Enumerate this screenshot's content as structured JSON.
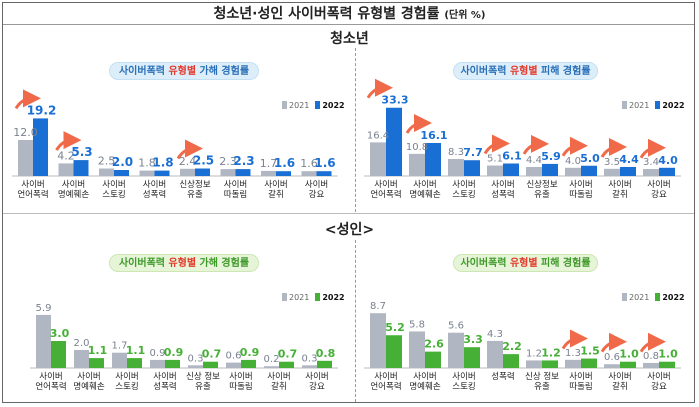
{
  "header": {
    "title": "청소년·성인 사이버폭력 유형별 경험률",
    "unit": "(단위 %)"
  },
  "sections": {
    "youth": "청소년",
    "adult": "<성인>"
  },
  "colors": {
    "y2021": "#b0b7c3",
    "youth2022": "#1a6fd4",
    "adult2022": "#45b035",
    "arrow": "#f06a4a",
    "highlight": "#e43a2c"
  },
  "chart_data": [
    {
      "id": "youth-perp",
      "type": "bar",
      "theme": "blue",
      "pill": {
        "pre": "사이버폭력 ",
        "hl": "유형별",
        "post": " 가해 경험률"
      },
      "legend": [
        "2021",
        "2022"
      ],
      "categories": [
        [
          "사이버",
          "언어폭력"
        ],
        [
          "사이버",
          "명예훼손"
        ],
        [
          "사이버",
          "스토킹"
        ],
        [
          "사이버",
          "성폭력"
        ],
        [
          "신상정보",
          "유출"
        ],
        [
          "사이버",
          "따돌림"
        ],
        [
          "사이버",
          "갈취"
        ],
        [
          "사이버",
          "강요"
        ]
      ],
      "series": [
        {
          "name": "2021",
          "values": [
            12.0,
            4.2,
            2.5,
            1.8,
            2.4,
            2.3,
            1.7,
            1.6
          ]
        },
        {
          "name": "2022",
          "values": [
            19.2,
            5.3,
            2.0,
            1.8,
            2.5,
            2.3,
            1.6,
            1.6
          ]
        }
      ],
      "labels": {
        "2021": [
          "12.0",
          "4.2",
          "2.5",
          "1.8",
          "2.4",
          "2.3",
          "1.7",
          "1.6"
        ],
        "2022": [
          "19.2",
          "5.3",
          "2.0",
          "1.8",
          "2.5",
          "2.3",
          "1.6",
          "1.6"
        ]
      },
      "increase_arrows": [
        0,
        1,
        4
      ]
    },
    {
      "id": "youth-victim",
      "type": "bar",
      "theme": "blue",
      "pill": {
        "pre": "사이버폭력 ",
        "hl": "유형별",
        "post": " 피해 경험률"
      },
      "legend": [
        "2021",
        "2022"
      ],
      "categories": [
        [
          "사이버",
          "언어폭력"
        ],
        [
          "사이버",
          "명예훼손"
        ],
        [
          "사이버",
          "스토킹"
        ],
        [
          "사이버",
          "성폭력"
        ],
        [
          "신상정보",
          "유출"
        ],
        [
          "사이버",
          "따돌림"
        ],
        [
          "사이버",
          "갈취"
        ],
        [
          "사이버",
          "강요"
        ]
      ],
      "series": [
        {
          "name": "2021",
          "values": [
            16.4,
            10.8,
            8.3,
            5.1,
            4.4,
            4.0,
            3.5,
            3.4
          ]
        },
        {
          "name": "2022",
          "values": [
            33.3,
            16.1,
            7.7,
            6.1,
            5.9,
            5.0,
            4.4,
            4.0
          ]
        }
      ],
      "labels": {
        "2021": [
          "16.4",
          "10.8",
          "8.3",
          "5.1",
          "4.4",
          "4.0",
          "3.5",
          "3.4"
        ],
        "2022": [
          "33.3",
          "16.1",
          "7.7",
          "6.1",
          "5.9",
          "5.0",
          "4.4",
          "4.0"
        ]
      },
      "increase_arrows": [
        0,
        1,
        3,
        4,
        5,
        6,
        7
      ]
    },
    {
      "id": "adult-perp",
      "type": "bar",
      "theme": "green",
      "pill": {
        "pre": "사이버폭력 ",
        "hl": "유형별",
        "post": " 가해 경험률"
      },
      "legend": [
        "2021",
        "2022"
      ],
      "categories": [
        [
          "사이버",
          "언어폭력"
        ],
        [
          "사이버",
          "명예훼손"
        ],
        [
          "사이버",
          "스토킹"
        ],
        [
          "사이버",
          "성폭력"
        ],
        [
          "신상 정보",
          "유출"
        ],
        [
          "사이버",
          "따돌림"
        ],
        [
          "사이버",
          "갈취"
        ],
        [
          "사이버",
          "강요"
        ]
      ],
      "series": [
        {
          "name": "2021",
          "values": [
            5.9,
            2.0,
            1.7,
            0.9,
            0.3,
            0.6,
            0.2,
            0.3
          ]
        },
        {
          "name": "2022",
          "values": [
            3.0,
            1.1,
            1.1,
            0.9,
            0.7,
            0.9,
            0.7,
            0.8
          ]
        }
      ],
      "labels": {
        "2021": [
          "5.9",
          "2.0",
          "1.7",
          "0.9",
          "0.3",
          "0.6",
          "0.2",
          "0.3"
        ],
        "2022": [
          "3.0",
          "1.1",
          "1.1",
          "0.9",
          "0.7",
          "0.9",
          "0.7",
          "0.8"
        ]
      },
      "increase_arrows": []
    },
    {
      "id": "adult-victim",
      "type": "bar",
      "theme": "green",
      "pill": {
        "pre": "사이버폭력 ",
        "hl": "유형별",
        "post": " 피해 경험률"
      },
      "legend": [
        "2021",
        "2022"
      ],
      "categories": [
        [
          "사이버",
          "언어폭력"
        ],
        [
          "사이버",
          "명예훼손"
        ],
        [
          "사이버",
          "스토킹"
        ],
        [
          "성폭력",
          ""
        ],
        [
          "신상 정보",
          "유출"
        ],
        [
          "사이버",
          "따돌림"
        ],
        [
          "사이버",
          "갈취"
        ],
        [
          "사이버",
          "강요"
        ]
      ],
      "series": [
        {
          "name": "2021",
          "values": [
            8.7,
            5.8,
            5.6,
            4.3,
            1.2,
            1.3,
            0.6,
            0.8
          ]
        },
        {
          "name": "2022",
          "values": [
            5.2,
            2.6,
            3.3,
            2.2,
            1.2,
            1.5,
            1.0,
            1.0
          ]
        }
      ],
      "labels": {
        "2021": [
          "8.7",
          "5.8",
          "5.6",
          "4.3",
          "1.2",
          "1.3",
          "0.6",
          "0.8"
        ],
        "2022": [
          "5.2",
          "2.6",
          "3.3",
          "2.2",
          "1.2",
          "1.5",
          "1.0",
          "1.0"
        ]
      },
      "increase_arrows": [
        5,
        6,
        7
      ]
    }
  ]
}
